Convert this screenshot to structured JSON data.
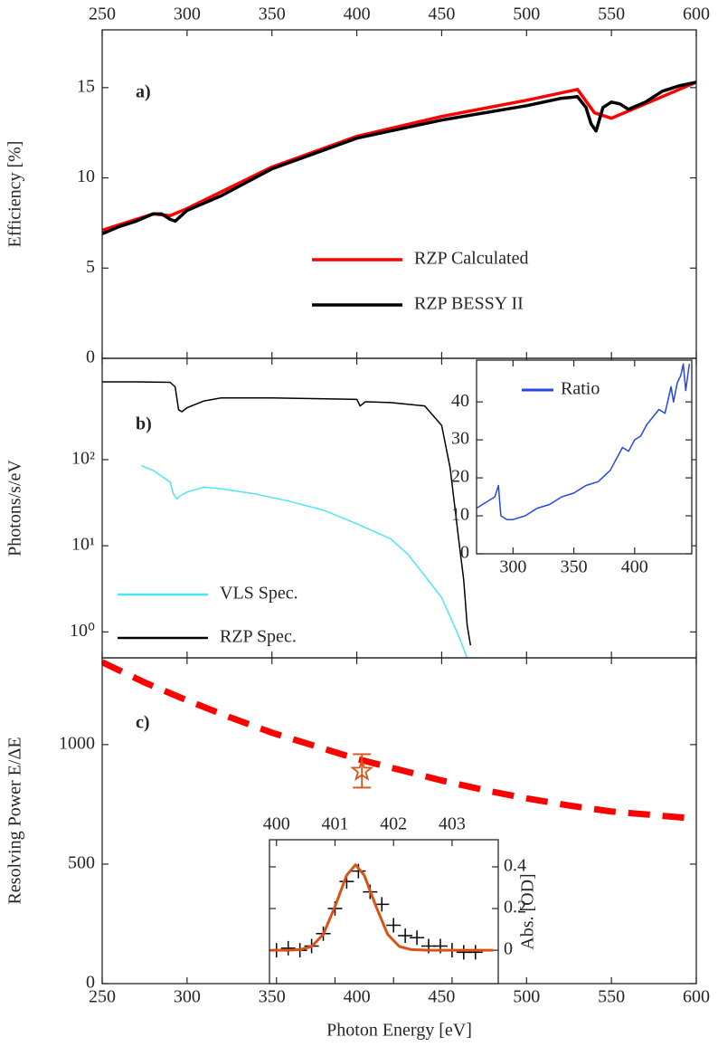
{
  "chart_data": [
    {
      "type": "line",
      "label": "a)",
      "ylabel": "Efficiency [%]",
      "xlim": [
        250,
        600
      ],
      "xticks": [
        250,
        300,
        350,
        400,
        450,
        500,
        550,
        600
      ],
      "x_tick_labels": "top",
      "ylim": [
        0,
        18.2
      ],
      "yticks": [
        0,
        5,
        10,
        15
      ],
      "y_axis_side": "left",
      "series": [
        {
          "name": "RZP Calculated",
          "color": "#ff0000",
          "x": [
            250,
            280,
            290,
            300,
            350,
            400,
            450,
            500,
            530,
            540,
            550,
            600
          ],
          "values": [
            7.1,
            8.0,
            7.9,
            8.3,
            10.6,
            12.3,
            13.4,
            14.3,
            14.9,
            13.6,
            13.3,
            15.3
          ]
        },
        {
          "name": "RZP BESSY II",
          "color": "#000000",
          "x": [
            250,
            260,
            270,
            280,
            285,
            290,
            293,
            300,
            320,
            350,
            400,
            450,
            500,
            520,
            530,
            535,
            538,
            541,
            545,
            550,
            555,
            560,
            570,
            580,
            590,
            600
          ],
          "values": [
            6.9,
            7.3,
            7.6,
            8.0,
            8.0,
            7.7,
            7.6,
            8.2,
            9.0,
            10.5,
            12.2,
            13.2,
            14.0,
            14.4,
            14.5,
            13.9,
            13.0,
            12.6,
            13.9,
            14.2,
            14.1,
            13.8,
            14.2,
            14.8,
            15.1,
            15.3
          ]
        }
      ]
    },
    {
      "type": "line",
      "label": "b)",
      "ylabel": "Photons/s/eV",
      "log_scale": "y",
      "xlim": [
        250,
        600
      ],
      "xticks": [
        250,
        300,
        350,
        400,
        450,
        500,
        550,
        600
      ],
      "x_tick_labels": "none",
      "ylim": [
        0.5,
        1500
      ],
      "yticks": [
        {
          "value": 1,
          "label": "10⁰"
        },
        {
          "value": 10,
          "label": "10¹"
        },
        {
          "value": 100,
          "label": "10²"
        }
      ],
      "y_axis_side": "left",
      "series": [
        {
          "name": "VLS Spec.",
          "color": "#4ee6f2",
          "x": [
            273,
            280,
            290,
            292,
            294,
            296,
            300,
            310,
            320,
            340,
            360,
            380,
            400,
            420,
            430,
            440,
            450,
            455,
            460,
            465
          ],
          "values": [
            85,
            75,
            55,
            40,
            35,
            38,
            42,
            48,
            46,
            40,
            33,
            26,
            18,
            12,
            8,
            4.5,
            2.5,
            1.5,
            0.9,
            0.5
          ]
        },
        {
          "name": "RZP Spec.",
          "color": "#000000",
          "x": [
            250,
            270,
            290,
            293,
            295,
            297,
            300,
            310,
            320,
            350,
            400,
            402,
            405,
            420,
            440,
            450,
            455,
            460,
            463,
            465,
            467
          ],
          "values": [
            800,
            800,
            790,
            700,
            380,
            360,
            400,
            480,
            520,
            520,
            500,
            420,
            470,
            460,
            420,
            250,
            80,
            12,
            4,
            1.2,
            0.7
          ]
        }
      ]
    },
    {
      "type": "line",
      "xlim": [
        270,
        447
      ],
      "xticks": [
        300,
        350,
        400
      ],
      "x_tick_labels": "bottom",
      "ylim": [
        0,
        51
      ],
      "yticks": [
        0,
        10,
        20,
        30,
        40
      ],
      "y_axis_side": "left",
      "series": [
        {
          "name": "Ratio",
          "color": "#2846e6",
          "x": [
            270,
            275,
            280,
            285,
            287,
            288,
            289,
            290,
            295,
            300,
            310,
            320,
            330,
            340,
            350,
            360,
            370,
            380,
            385,
            390,
            395,
            400,
            405,
            410,
            415,
            420,
            425,
            430,
            432,
            435,
            438,
            440,
            442,
            445
          ],
          "values": [
            12,
            13,
            14,
            15,
            17,
            18,
            14,
            10,
            9,
            9,
            10,
            12,
            13,
            15,
            16,
            18,
            19,
            22,
            25,
            28,
            27,
            30,
            31,
            34,
            36,
            38,
            37,
            44,
            40,
            45,
            47,
            50,
            43,
            50
          ]
        }
      ]
    },
    {
      "type": "line",
      "label": "c)",
      "ylabel": "Resolving Power E/ΔE",
      "xlabel": "Photon Energy [eV]",
      "xlim": [
        250,
        600
      ],
      "xticks": [
        250,
        300,
        350,
        400,
        450,
        500,
        550,
        600
      ],
      "x_tick_labels": "bottom",
      "ylim": [
        0,
        1363
      ],
      "yticks": [
        0,
        500,
        1000
      ],
      "y_axis_side": "left",
      "series": [
        {
          "color": "#ff0000",
          "style": "dashed",
          "x": [
            250,
            275,
            300,
            325,
            350,
            375,
            400,
            425,
            450,
            475,
            500,
            525,
            550,
            575,
            600
          ],
          "values": [
            1345,
            1260,
            1185,
            1115,
            1050,
            995,
            940,
            895,
            850,
            810,
            775,
            745,
            720,
            705,
            690
          ]
        }
      ],
      "points": {
        "color": "#d95319",
        "x": [
          403
        ],
        "values": [
          890
        ],
        "errors": [
          70
        ]
      }
    },
    {
      "type": "line",
      "ylabel": "Abs. [OD]",
      "xlim": [
        399.88,
        403.79
      ],
      "xticks": [
        400,
        401,
        402,
        403
      ],
      "x_tick_labels": "top",
      "ylim": [
        -0.16,
        0.53
      ],
      "yticks": [
        0,
        0.2,
        0.4
      ],
      "y_axis_side": "right",
      "series": [
        {
          "color": "#000000",
          "marker": "plus",
          "x": [
            400,
            400.2,
            400.4,
            400.6,
            400.8,
            401,
            401.2,
            401.4,
            401.6,
            401.8,
            402,
            402.2,
            402.4,
            402.6,
            402.8,
            403,
            403.2,
            403.4
          ],
          "values": [
            0,
            0.01,
            0,
            0.02,
            0.08,
            0.2,
            0.33,
            0.38,
            0.28,
            0.22,
            0.12,
            0.07,
            0.06,
            0.02,
            0.02,
            0,
            -0.01,
            -0.01
          ]
        },
        {
          "color": "#d95319",
          "x": [
            399.9,
            400.2,
            400.4,
            400.6,
            400.8,
            401,
            401.2,
            401.35,
            401.5,
            401.7,
            401.9,
            402.1,
            402.3,
            402.6,
            403,
            403.7
          ],
          "values": [
            0,
            0,
            0.003,
            0.018,
            0.076,
            0.21,
            0.36,
            0.41,
            0.36,
            0.21,
            0.076,
            0.018,
            0.003,
            0,
            0,
            0
          ]
        }
      ]
    }
  ]
}
